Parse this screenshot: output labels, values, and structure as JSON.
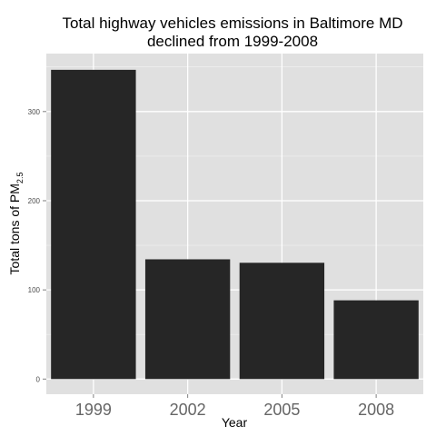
{
  "chart_data": {
    "type": "bar",
    "title_lines": [
      "Total highway vehicles emissions in Baltimore MD",
      "declined from 1999-2008"
    ],
    "xlabel": "Year",
    "ylabel_main": "Total tons of PM",
    "ylabel_sub": "2.5",
    "categories": [
      "1999",
      "2002",
      "2005",
      "2008"
    ],
    "values": [
      346.8,
      134.3,
      130.4,
      88.3
    ],
    "ylim": [
      -17,
      365
    ],
    "yticks": [
      0,
      100,
      200,
      300
    ],
    "ytick_labels": [
      "0",
      "100",
      "200",
      "300"
    ],
    "grid": true,
    "colors": {
      "panel": "#e0e0e0",
      "grid": "#ffffff",
      "bar": "#262626"
    }
  }
}
